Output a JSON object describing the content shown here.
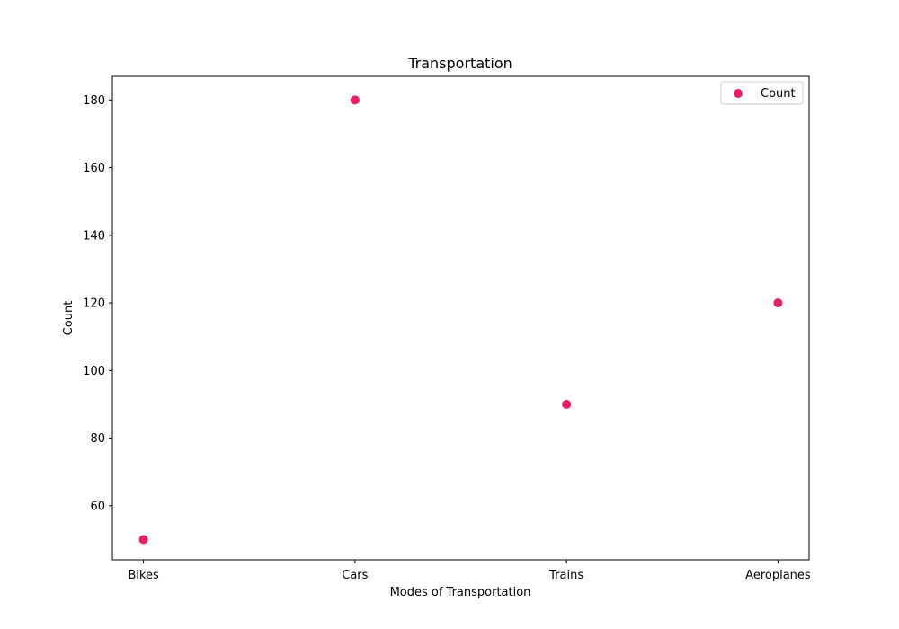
{
  "chart_data": {
    "type": "scatter",
    "title": "Transportation",
    "xlabel": "Modes of Transportation",
    "ylabel": "Count",
    "categories": [
      "Bikes",
      "Cars",
      "Trains",
      "Aeroplanes"
    ],
    "series": [
      {
        "name": "Count",
        "values": [
          50,
          180,
          90,
          120
        ],
        "color": "#e91e63"
      }
    ],
    "ylim": [
      44,
      187
    ],
    "yticks": [
      60,
      80,
      100,
      120,
      140,
      160,
      180
    ],
    "grid": false,
    "legend": {
      "placement": "top-right"
    }
  }
}
